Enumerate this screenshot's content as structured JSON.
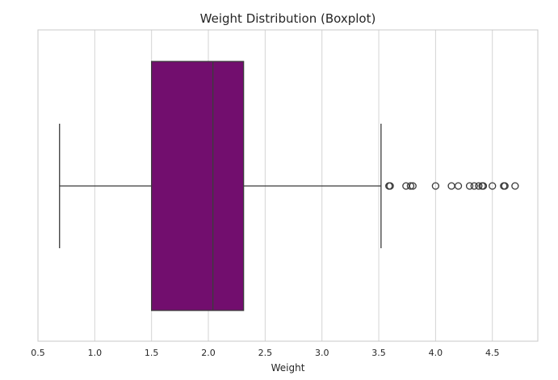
{
  "chart_data": {
    "type": "boxplot",
    "orientation": "horizontal",
    "title": "Weight Distribution (Boxplot)",
    "xlabel": "Weight",
    "ylabel": "",
    "xlim": [
      0.5,
      4.9
    ],
    "xticks": [
      0.5,
      1.0,
      1.5,
      2.0,
      2.5,
      3.0,
      3.5,
      4.0,
      4.5
    ],
    "xtick_labels": [
      "0.5",
      "1.0",
      "1.5",
      "2.0",
      "2.5",
      "3.0",
      "3.5",
      "4.0",
      "4.5"
    ],
    "grid": true,
    "colors": {
      "box": "#720E6E",
      "line": "#3b3b3b",
      "grid": "#d4d4d4",
      "spine": "#c8c8c8"
    },
    "box": {
      "whisker_low": 0.69,
      "q1": 1.5,
      "median": 2.04,
      "q3": 2.31,
      "whisker_high": 3.52
    },
    "outliers": [
      3.59,
      3.6,
      3.74,
      3.78,
      3.8,
      4.0,
      4.14,
      4.2,
      4.3,
      4.34,
      4.38,
      4.41,
      4.42,
      4.5,
      4.6,
      4.61,
      4.7
    ]
  }
}
